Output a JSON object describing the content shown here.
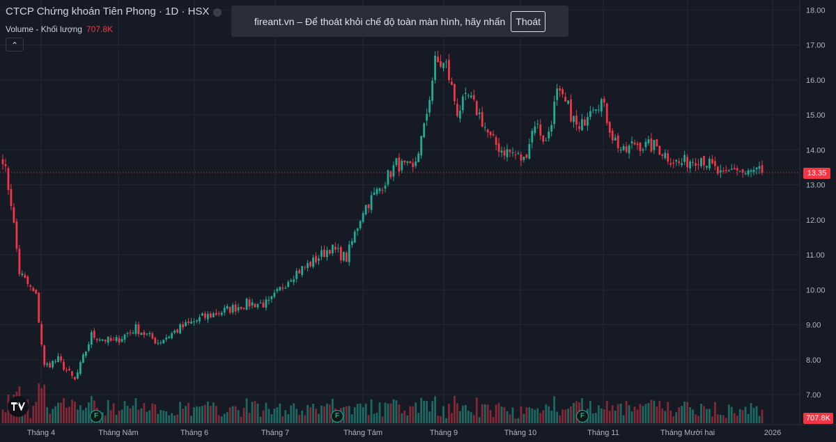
{
  "header": {
    "title": "CTCP Chứng khoán Tiên Phong · 1D · HSX",
    "volume_label": "Volume - Khối lượng",
    "volume_value": "707.8K"
  },
  "banner": {
    "message": "fireant.vn – Để thoát khỏi chế độ toàn màn hình, hãy nhấn",
    "exit_label": "Thoát"
  },
  "colors": {
    "up": "#22ab94",
    "down": "#f23645",
    "background": "#161a25",
    "grid": "#242832",
    "text": "#d1d4dc"
  },
  "icons": {
    "collapse": "chevron-up-icon",
    "logo": "tradingview-logo-icon",
    "event": "f-flag-icon"
  },
  "chart_data": {
    "type": "candlestick",
    "title": "CTCP Chứng khoán Tiên Phong · 1D · HSX",
    "last_price_label": "13.35",
    "last_volume_label": "707.8K",
    "y_ticks": [
      "7.00",
      "8.00",
      "9.00",
      "10.00",
      "11.00",
      "12.00",
      "13.00",
      "14.00",
      "15.00",
      "16.00",
      "17.00",
      "18.00"
    ],
    "x_ticks": [
      "Tháng 4",
      "Tháng Năm",
      "Tháng 6",
      "Tháng 7",
      "Tháng Tám",
      "Tháng 9",
      "Tháng 10",
      "Tháng 11",
      "Tháng Mười hai",
      "2026"
    ],
    "ylim": [
      6.3,
      18.1
    ],
    "grid": true,
    "event_flags": [
      "F",
      "F",
      "F"
    ],
    "anchors": [
      {
        "i": 0,
        "p": 13.8
      },
      {
        "i": 3,
        "p": 12.5
      },
      {
        "i": 6,
        "p": 10.5
      },
      {
        "i": 12,
        "p": 9.8
      },
      {
        "i": 15,
        "p": 7.8
      },
      {
        "i": 20,
        "p": 8.0
      },
      {
        "i": 26,
        "p": 7.4
      },
      {
        "i": 32,
        "p": 8.7
      },
      {
        "i": 40,
        "p": 8.5
      },
      {
        "i": 48,
        "p": 8.9
      },
      {
        "i": 56,
        "p": 8.5
      },
      {
        "i": 64,
        "p": 8.9
      },
      {
        "i": 72,
        "p": 9.2
      },
      {
        "i": 80,
        "p": 9.4
      },
      {
        "i": 88,
        "p": 9.6
      },
      {
        "i": 96,
        "p": 9.6
      },
      {
        "i": 104,
        "p": 10.4
      },
      {
        "i": 112,
        "p": 10.8
      },
      {
        "i": 118,
        "p": 11.2
      },
      {
        "i": 124,
        "p": 10.9
      },
      {
        "i": 130,
        "p": 12.3
      },
      {
        "i": 136,
        "p": 12.9
      },
      {
        "i": 142,
        "p": 13.6
      },
      {
        "i": 148,
        "p": 13.4
      },
      {
        "i": 152,
        "p": 14.6
      },
      {
        "i": 156,
        "p": 16.5
      },
      {
        "i": 160,
        "p": 16.4
      },
      {
        "i": 164,
        "p": 15.1
      },
      {
        "i": 168,
        "p": 15.5
      },
      {
        "i": 172,
        "p": 15.0
      },
      {
        "i": 176,
        "p": 14.3
      },
      {
        "i": 180,
        "p": 14.0
      },
      {
        "i": 184,
        "p": 13.9
      },
      {
        "i": 188,
        "p": 13.7
      },
      {
        "i": 192,
        "p": 14.8
      },
      {
        "i": 196,
        "p": 14.2
      },
      {
        "i": 200,
        "p": 15.6
      },
      {
        "i": 204,
        "p": 15.2
      },
      {
        "i": 208,
        "p": 14.5
      },
      {
        "i": 212,
        "p": 15.3
      },
      {
        "i": 216,
        "p": 15.4
      },
      {
        "i": 220,
        "p": 14.4
      },
      {
        "i": 224,
        "p": 13.9
      },
      {
        "i": 228,
        "p": 14.2
      },
      {
        "i": 232,
        "p": 14.1
      },
      {
        "i": 236,
        "p": 14.1
      },
      {
        "i": 240,
        "p": 13.8
      },
      {
        "i": 244,
        "p": 13.6
      },
      {
        "i": 248,
        "p": 13.7
      },
      {
        "i": 252,
        "p": 13.8
      },
      {
        "i": 256,
        "p": 13.5
      },
      {
        "i": 260,
        "p": 13.2
      },
      {
        "i": 264,
        "p": 13.5
      },
      {
        "i": 268,
        "p": 13.3
      },
      {
        "i": 272,
        "p": 13.4
      },
      {
        "i": 274,
        "p": 13.35
      }
    ]
  }
}
